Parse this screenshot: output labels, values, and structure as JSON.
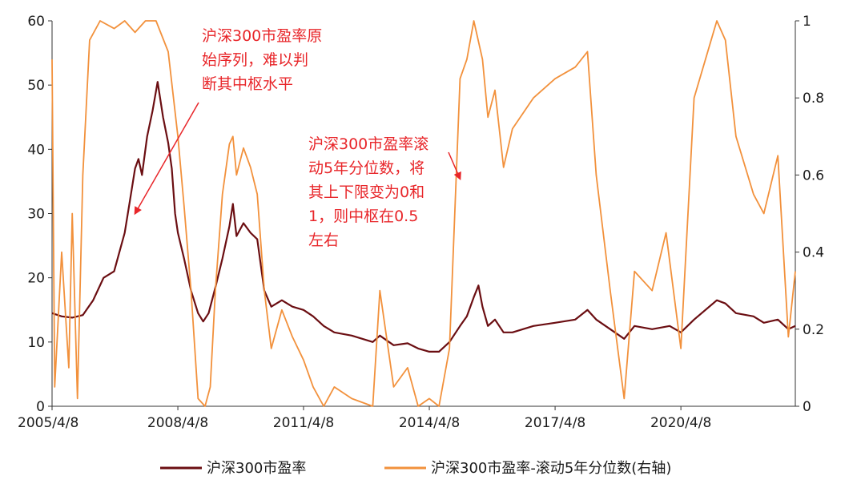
{
  "chart_data": {
    "type": "line",
    "x_axis": {
      "range": [
        "2005/4/8",
        "2022/12/31"
      ],
      "tick_labels": [
        "2005/4/8",
        "2008/4/8",
        "2011/4/8",
        "2014/4/8",
        "2017/4/8",
        "2020/4/8"
      ]
    },
    "y_left": {
      "range": [
        0,
        60
      ],
      "tick_labels": [
        "0",
        "10",
        "20",
        "30",
        "40",
        "50",
        "60"
      ]
    },
    "y_right": {
      "range": [
        0,
        1
      ],
      "tick_labels": [
        "0",
        "0.2",
        "0.4",
        "0.6",
        "0.8",
        "1"
      ]
    },
    "grid": false,
    "legend_position": "bottom",
    "series": [
      {
        "name": "沪深300市盈率",
        "axis": "left",
        "color": "#6b0e12",
        "points": [
          [
            "2005/04/08",
            14.5
          ],
          [
            "2005/07/01",
            14.0
          ],
          [
            "2005/10/01",
            13.8
          ],
          [
            "2006/01/01",
            14.2
          ],
          [
            "2006/04/01",
            16.5
          ],
          [
            "2006/07/01",
            20.0
          ],
          [
            "2006/10/01",
            21.0
          ],
          [
            "2007/01/01",
            27.0
          ],
          [
            "2007/02/15",
            32.0
          ],
          [
            "2007/04/01",
            37.0
          ],
          [
            "2007/05/01",
            38.5
          ],
          [
            "2007/06/01",
            36.0
          ],
          [
            "2007/07/15",
            42.0
          ],
          [
            "2007/09/01",
            46.0
          ],
          [
            "2007/10/15",
            50.5
          ],
          [
            "2007/12/01",
            45.0
          ],
          [
            "2008/01/15",
            41.0
          ],
          [
            "2008/02/15",
            37.0
          ],
          [
            "2008/03/15",
            30.0
          ],
          [
            "2008/04/08",
            27.0
          ],
          [
            "2008/06/01",
            23.0
          ],
          [
            "2008/08/01",
            18.0
          ],
          [
            "2008/10/01",
            14.5
          ],
          [
            "2008/11/15",
            13.2
          ],
          [
            "2009/01/01",
            14.5
          ],
          [
            "2009/03/01",
            18.5
          ],
          [
            "2009/05/01",
            23.0
          ],
          [
            "2009/07/01",
            28.0
          ],
          [
            "2009/08/01",
            31.5
          ],
          [
            "2009/09/01",
            26.5
          ],
          [
            "2009/11/01",
            28.5
          ],
          [
            "2010/01/01",
            27.0
          ],
          [
            "2010/03/01",
            26.0
          ],
          [
            "2010/05/01",
            18.0
          ],
          [
            "2010/07/01",
            15.5
          ],
          [
            "2010/10/01",
            16.5
          ],
          [
            "2011/01/01",
            15.5
          ],
          [
            "2011/04/08",
            15.0
          ],
          [
            "2011/07/01",
            14.0
          ],
          [
            "2011/10/01",
            12.5
          ],
          [
            "2012/01/01",
            11.5
          ],
          [
            "2012/06/01",
            11.0
          ],
          [
            "2012/12/01",
            10.0
          ],
          [
            "2013/02/01",
            11.0
          ],
          [
            "2013/06/01",
            9.5
          ],
          [
            "2013/10/01",
            9.8
          ],
          [
            "2014/01/01",
            9.0
          ],
          [
            "2014/04/08",
            8.5
          ],
          [
            "2014/07/01",
            8.5
          ],
          [
            "2014/10/01",
            10.0
          ],
          [
            "2015/01/01",
            12.5
          ],
          [
            "2015/03/01",
            14.0
          ],
          [
            "2015/05/01",
            17.0
          ],
          [
            "2015/06/10",
            18.8
          ],
          [
            "2015/07/15",
            15.5
          ],
          [
            "2015/09/01",
            12.5
          ],
          [
            "2015/11/01",
            13.5
          ],
          [
            "2016/01/15",
            11.5
          ],
          [
            "2016/04/01",
            11.5
          ],
          [
            "2016/10/01",
            12.5
          ],
          [
            "2017/04/08",
            13.0
          ],
          [
            "2017/10/01",
            13.5
          ],
          [
            "2018/01/15",
            15.0
          ],
          [
            "2018/04/01",
            13.5
          ],
          [
            "2018/08/01",
            12.0
          ],
          [
            "2018/12/01",
            10.5
          ],
          [
            "2019/03/01",
            12.5
          ],
          [
            "2019/08/01",
            12.0
          ],
          [
            "2020/01/01",
            12.5
          ],
          [
            "2020/04/08",
            11.5
          ],
          [
            "2020/08/01",
            13.5
          ],
          [
            "2021/02/15",
            16.5
          ],
          [
            "2021/05/01",
            16.0
          ],
          [
            "2021/08/01",
            14.5
          ],
          [
            "2022/01/01",
            14.0
          ],
          [
            "2022/04/01",
            13.0
          ],
          [
            "2022/08/01",
            13.5
          ],
          [
            "2022/10/31",
            12.0
          ],
          [
            "2022/12/31",
            12.5
          ]
        ]
      },
      {
        "name": "沪深300市盈率-滚动5年分位数(右轴)",
        "axis": "right",
        "color": "#f2913c",
        "points": [
          [
            "2005/04/08",
            0.9
          ],
          [
            "2005/05/01",
            0.05
          ],
          [
            "2005/07/01",
            0.4
          ],
          [
            "2005/09/01",
            0.1
          ],
          [
            "2005/10/01",
            0.5
          ],
          [
            "2005/11/15",
            0.02
          ],
          [
            "2006/01/01",
            0.6
          ],
          [
            "2006/03/01",
            0.95
          ],
          [
            "2006/06/01",
            1.0
          ],
          [
            "2006/10/01",
            0.98
          ],
          [
            "2007/01/01",
            1.0
          ],
          [
            "2007/04/01",
            0.97
          ],
          [
            "2007/07/01",
            1.0
          ],
          [
            "2007/10/01",
            1.0
          ],
          [
            "2008/01/15",
            0.92
          ],
          [
            "2008/04/08",
            0.7
          ],
          [
            "2008/06/01",
            0.52
          ],
          [
            "2008/08/01",
            0.3
          ],
          [
            "2008/10/01",
            0.02
          ],
          [
            "2008/12/01",
            0.0
          ],
          [
            "2009/01/15",
            0.05
          ],
          [
            "2009/03/01",
            0.3
          ],
          [
            "2009/05/01",
            0.55
          ],
          [
            "2009/07/01",
            0.68
          ],
          [
            "2009/08/01",
            0.7
          ],
          [
            "2009/09/01",
            0.6
          ],
          [
            "2009/11/01",
            0.67
          ],
          [
            "2010/01/01",
            0.62
          ],
          [
            "2010/03/01",
            0.55
          ],
          [
            "2010/05/01",
            0.3
          ],
          [
            "2010/07/01",
            0.15
          ],
          [
            "2010/10/01",
            0.25
          ],
          [
            "2011/01/01",
            0.18
          ],
          [
            "2011/04/08",
            0.12
          ],
          [
            "2011/07/01",
            0.05
          ],
          [
            "2011/10/01",
            0.0
          ],
          [
            "2012/01/01",
            0.05
          ],
          [
            "2012/06/01",
            0.02
          ],
          [
            "2012/12/01",
            0.0
          ],
          [
            "2013/02/01",
            0.3
          ],
          [
            "2013/06/01",
            0.05
          ],
          [
            "2013/10/01",
            0.1
          ],
          [
            "2014/01/01",
            0.0
          ],
          [
            "2014/04/08",
            0.02
          ],
          [
            "2014/07/01",
            0.0
          ],
          [
            "2014/10/01",
            0.15
          ],
          [
            "2015/01/01",
            0.85
          ],
          [
            "2015/03/01",
            0.9
          ],
          [
            "2015/05/01",
            1.0
          ],
          [
            "2015/07/15",
            0.9
          ],
          [
            "2015/09/01",
            0.75
          ],
          [
            "2015/11/01",
            0.82
          ],
          [
            "2016/01/15",
            0.62
          ],
          [
            "2016/04/01",
            0.72
          ],
          [
            "2016/10/01",
            0.8
          ],
          [
            "2017/04/08",
            0.85
          ],
          [
            "2017/10/01",
            0.88
          ],
          [
            "2018/01/15",
            0.92
          ],
          [
            "2018/04/01",
            0.6
          ],
          [
            "2018/08/01",
            0.3
          ],
          [
            "2018/12/01",
            0.02
          ],
          [
            "2019/03/01",
            0.35
          ],
          [
            "2019/08/01",
            0.3
          ],
          [
            "2019/12/01",
            0.45
          ],
          [
            "2020/04/08",
            0.15
          ],
          [
            "2020/08/01",
            0.8
          ],
          [
            "2021/02/15",
            1.0
          ],
          [
            "2021/05/01",
            0.95
          ],
          [
            "2021/08/01",
            0.7
          ],
          [
            "2022/01/01",
            0.55
          ],
          [
            "2022/04/01",
            0.5
          ],
          [
            "2022/08/01",
            0.65
          ],
          [
            "2022/10/31",
            0.18
          ],
          [
            "2022/12/31",
            0.35
          ]
        ]
      }
    ],
    "annotations": [
      {
        "lines": [
          "沪深300市盈率原",
          "始序列，难以判",
          "断其中枢水平"
        ],
        "color": "#e8262a",
        "arrow_to": [
          "2007/04/01",
          30
        ],
        "arrow_axis": "left"
      },
      {
        "lines": [
          "沪深300市盈率滚",
          "动5年分位数，将",
          "其上下限变为0和",
          "1，则中枢在0.5",
          "左右"
        ],
        "color": "#e8262a",
        "arrow_to": [
          "2015/01/01",
          0.59
        ],
        "arrow_axis": "right"
      }
    ]
  }
}
